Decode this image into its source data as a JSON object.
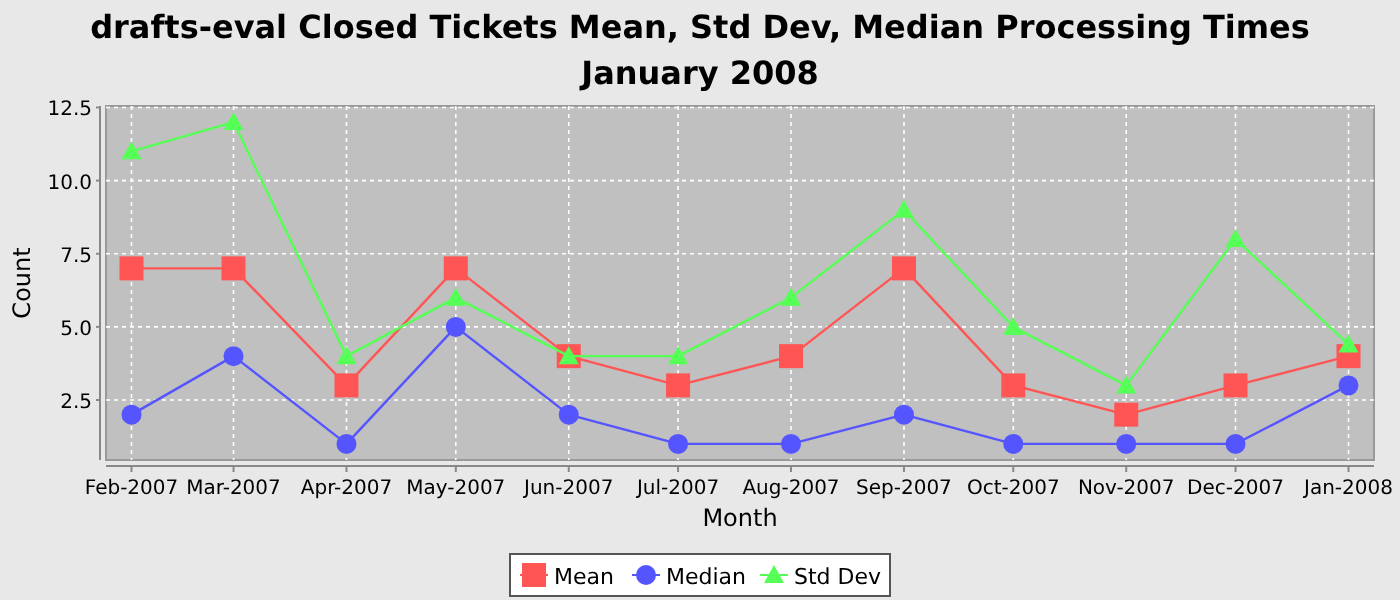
{
  "chart_data": {
    "type": "line",
    "title": "drafts-eval Closed Tickets Mean, Std Dev, Median Processing Times\nJanuary 2008",
    "xlabel": "Month",
    "ylabel": "Count",
    "x": [
      "2007-02",
      "2007-03",
      "2007-04",
      "2007-05",
      "2007-06",
      "2007-07",
      "2007-08",
      "2007-09",
      "2007-10",
      "2007-11",
      "2007-12",
      "2008-01"
    ],
    "xlim": [
      "2007-01-25",
      "2008-01-08"
    ],
    "xticks": [
      {
        "value": "2007-02",
        "label": "Feb-2007"
      },
      {
        "value": "2007-03",
        "label": "Mar-2007"
      },
      {
        "value": "2007-04",
        "label": "Apr-2007"
      },
      {
        "value": "2007-05",
        "label": "May-2007"
      },
      {
        "value": "2007-06",
        "label": "Jun-2007"
      },
      {
        "value": "2007-07",
        "label": "Jul-2007"
      },
      {
        "value": "2007-08",
        "label": "Aug-2007"
      },
      {
        "value": "2007-09",
        "label": "Sep-2007"
      },
      {
        "value": "2007-10",
        "label": "Oct-2007"
      },
      {
        "value": "2007-11",
        "label": "Nov-2007"
      },
      {
        "value": "2007-12",
        "label": "Dec-2007"
      },
      {
        "value": "2008-01",
        "label": "Jan-2008"
      }
    ],
    "ylim": [
      0.45,
      12.55
    ],
    "yticks": [
      2.5,
      {
        "value": 5,
        "label": "5.0"
      },
      7.5,
      {
        "value": 10,
        "label": "10.0"
      },
      12.5
    ],
    "grid": true,
    "legend": "bottom",
    "line_style": "solid",
    "series": [
      {
        "name": "Mean",
        "color": "#ff5555",
        "marker": "square",
        "values": [
          7,
          7,
          3,
          7,
          4,
          3,
          4,
          7,
          3,
          2,
          3,
          4
        ]
      },
      {
        "name": "Median",
        "color": "#5555ff",
        "marker": "circle",
        "values": [
          2,
          4,
          1,
          5,
          2,
          1,
          1,
          2,
          1,
          1,
          1,
          3
        ]
      },
      {
        "name": "Std Dev",
        "color": "#55ff55",
        "marker": "triangle",
        "values": [
          11,
          12,
          4,
          6,
          4,
          4,
          6,
          9,
          5,
          3,
          8,
          4.4
        ]
      }
    ]
  }
}
